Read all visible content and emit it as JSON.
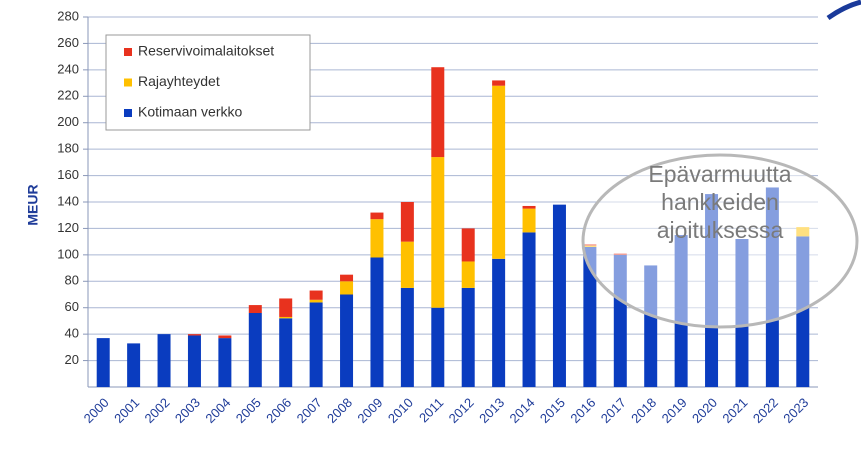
{
  "chart_data": {
    "type": "stacked_bar",
    "y_label": "MEUR",
    "categories": [
      "2000",
      "2001",
      "2002",
      "2003",
      "2004",
      "2005",
      "2006",
      "2007",
      "2008",
      "2009",
      "2010",
      "2011",
      "2012",
      "2013",
      "2014",
      "2015",
      "2016",
      "2017",
      "2018",
      "2019",
      "2020",
      "2021",
      "2022",
      "2023"
    ],
    "series": [
      {
        "name": "Kotimaan verkko",
        "color": "#0a3cbf",
        "values": [
          37,
          33,
          40,
          39,
          37,
          56,
          52,
          64,
          70,
          98,
          75,
          60,
          75,
          97,
          117,
          138,
          106,
          100,
          92,
          115,
          146,
          112,
          151,
          114
        ]
      },
      {
        "name": "Rajayhteydet",
        "color": "#ffc000",
        "values": [
          0,
          0,
          0,
          0,
          0,
          0,
          1,
          2,
          10,
          29,
          35,
          114,
          20,
          131,
          18,
          0,
          1,
          0,
          0,
          0,
          0,
          0,
          0,
          7
        ]
      },
      {
        "name": "Reservivoimalaitokset",
        "color": "#e8321e",
        "values": [
          0,
          0,
          0,
          1,
          2,
          6,
          14,
          7,
          5,
          5,
          30,
          68,
          25,
          4,
          2,
          0,
          1,
          1,
          0,
          0,
          0,
          0,
          0,
          0
        ]
      }
    ],
    "ylim": [
      0,
      280
    ],
    "yticks": [
      20,
      40,
      60,
      80,
      100,
      120,
      140,
      160,
      180,
      200,
      220,
      240,
      260,
      280
    ],
    "grid": true,
    "annotation": [
      "Epävarmuutta",
      "hankkeiden",
      "ajoituksessa"
    ]
  }
}
